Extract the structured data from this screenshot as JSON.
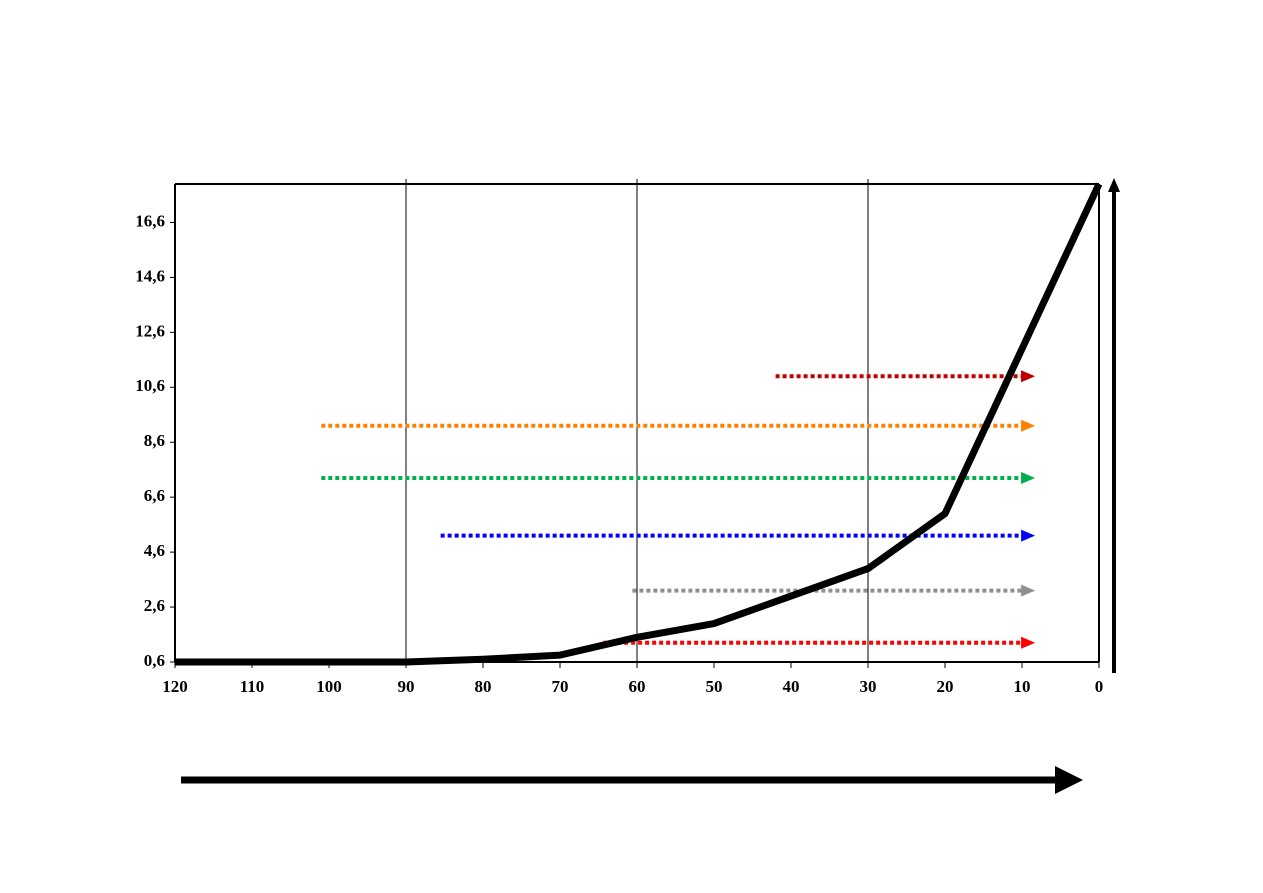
{
  "chart_data": {
    "type": "line",
    "x": [
      120,
      110,
      100,
      90,
      80,
      70,
      60,
      50,
      40,
      30,
      20,
      10,
      0
    ],
    "series": [
      {
        "color": "#000000",
        "values": [
          0.6,
          0.6,
          0.6,
          0.6,
          0.7,
          0.85,
          1.5,
          2.0,
          3.0,
          4.0,
          6.0,
          12.0,
          18.0
        ]
      }
    ],
    "xlim": [
      120,
      0
    ],
    "xticks": [
      120,
      110,
      100,
      90,
      80,
      70,
      60,
      50,
      40,
      30,
      20,
      10,
      0
    ],
    "ylim": [
      0.6,
      18.0
    ],
    "yticks": [
      {
        "value": 0.6,
        "label": "0,6"
      },
      {
        "value": 2.6,
        "label": "2,6"
      },
      {
        "value": 4.6,
        "label": "4,6"
      },
      {
        "value": 6.6,
        "label": "6,6"
      },
      {
        "value": 8.6,
        "label": "8,6"
      },
      {
        "value": 10.6,
        "label": "10,6"
      },
      {
        "value": 12.6,
        "label": "12,6"
      },
      {
        "value": 14.6,
        "label": "14,6"
      },
      {
        "value": 16.6,
        "label": "16,6"
      }
    ],
    "vlines": [
      90,
      60,
      30
    ],
    "arrows": [
      {
        "y": 11.0,
        "x_start": 42,
        "x_end": 8.3,
        "color": "#c00000"
      },
      {
        "y": 9.2,
        "x_start": 101,
        "x_end": 8.3,
        "color": "#ff8000"
      },
      {
        "y": 7.3,
        "x_start": 101,
        "x_end": 8.3,
        "color": "#00b050"
      },
      {
        "y": 5.2,
        "x_start": 85.5,
        "x_end": 8.3,
        "color": "#0000ff"
      },
      {
        "y": 3.2,
        "x_start": 60.6,
        "x_end": 8.3,
        "color": "#909090"
      },
      {
        "y": 1.3,
        "x_start": 64.4,
        "x_end": 8.3,
        "color": "#ff0000"
      }
    ]
  }
}
